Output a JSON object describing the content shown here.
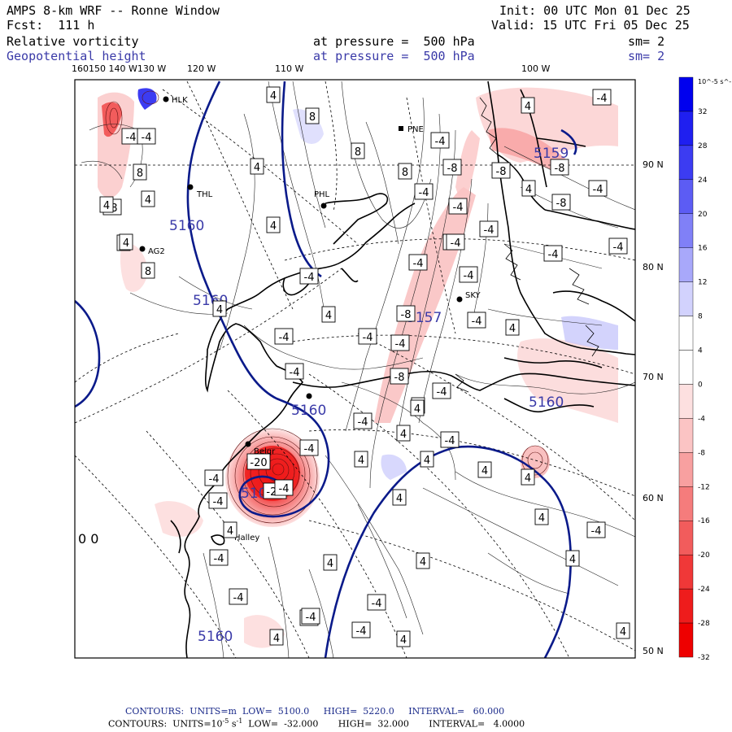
{
  "header": {
    "title": "AMPS 8-km WRF -- Ronne Window",
    "forecast": "Fcst:  111 h",
    "init": "Init: 00 UTC Mon 01 Dec 25",
    "valid": "Valid: 15 UTC Fri 05 Dec 25",
    "field1_name": "Relative vorticity",
    "field1_level": "at pressure =  500 hPa",
    "field1_sm": "sm= 2",
    "field2_name": "Geopotential height",
    "field2_level": "at pressure =  500 hPa",
    "field2_sm": "sm= 2"
  },
  "longitude_labels": [
    "160150 140 W130 W",
    "120 W",
    "110 W",
    "100 W"
  ],
  "latitude_labels": [
    "90 N",
    "80 N",
    "70 N",
    "60 N",
    "50 N"
  ],
  "stations": [
    "HLK",
    "PNE",
    "THL",
    "PHL",
    "AG2",
    "SKY",
    "Halley",
    "Belgr"
  ],
  "colorbar": {
    "units": "10^-5 s^-1",
    "labels": [
      "32",
      "28",
      "24",
      "20",
      "16",
      "12",
      "8",
      "4",
      "0",
      "-4",
      "-8",
      "-12",
      "-16",
      "-20",
      "-24",
      "-28",
      "-32"
    ],
    "colors": [
      "#0000ee",
      "#1f1ff0",
      "#3c3cf2",
      "#5c5cf4",
      "#8080f7",
      "#a8a8fa",
      "#d2d2fd",
      "#ffffff",
      "#ffffff",
      "#fde0e0",
      "#fbc4c4",
      "#f8a0a0",
      "#f57c7c",
      "#f25c5c",
      "#f03838",
      "#ee1c1c",
      "#ee0000"
    ]
  },
  "height_labels": [
    "5160",
    "5160",
    "5160",
    "5100",
    "5160",
    "5157",
    "5159",
    "5160"
  ],
  "vorticity_labels": [
    "4",
    "4",
    "8",
    "8",
    "8",
    "4",
    "4",
    "-4",
    "-4",
    "-8",
    "-8",
    "-4",
    "-4",
    "-4",
    "-4",
    "-4",
    "-8",
    "-4",
    "-8",
    "-4",
    "-4",
    "-4",
    "-8",
    "-4",
    "-8",
    "-4",
    "-4",
    "-4",
    "-4",
    "4",
    "4",
    "-4",
    "-4",
    "4",
    "-4",
    "4",
    "-4",
    "4",
    "-4",
    "8",
    "-8",
    "4",
    "8",
    "4",
    "4",
    "-4",
    "4",
    "4",
    "-4",
    "-4",
    "4",
    "4",
    "4",
    "4",
    "-4",
    "4",
    "4",
    "4",
    "4",
    "-4",
    "-8",
    "-4",
    "-4",
    "4",
    "4",
    "-4",
    "4",
    "-20",
    "-24",
    "-4",
    "-4",
    "-4",
    "4",
    "4",
    "4",
    "-4",
    "4",
    "4",
    "4",
    "-4",
    "4",
    "4",
    "4",
    "4",
    "4",
    "4"
  ],
  "other_text": [
    "0 0"
  ],
  "footer": {
    "line1": "CONTOURS:  UNITS=m  LOW=  5100.0     HIGH=  5220.0     INTERVAL=   60.000",
    "line2_a": "CONTOURS:  UNITS=10",
    "line2_sup": "-5",
    "line2_b": " s",
    "line2_sup2": "-1",
    "line2_c": "  LOW=  -32.000       HIGH=  32.000       INTERVAL=   4.0000"
  }
}
